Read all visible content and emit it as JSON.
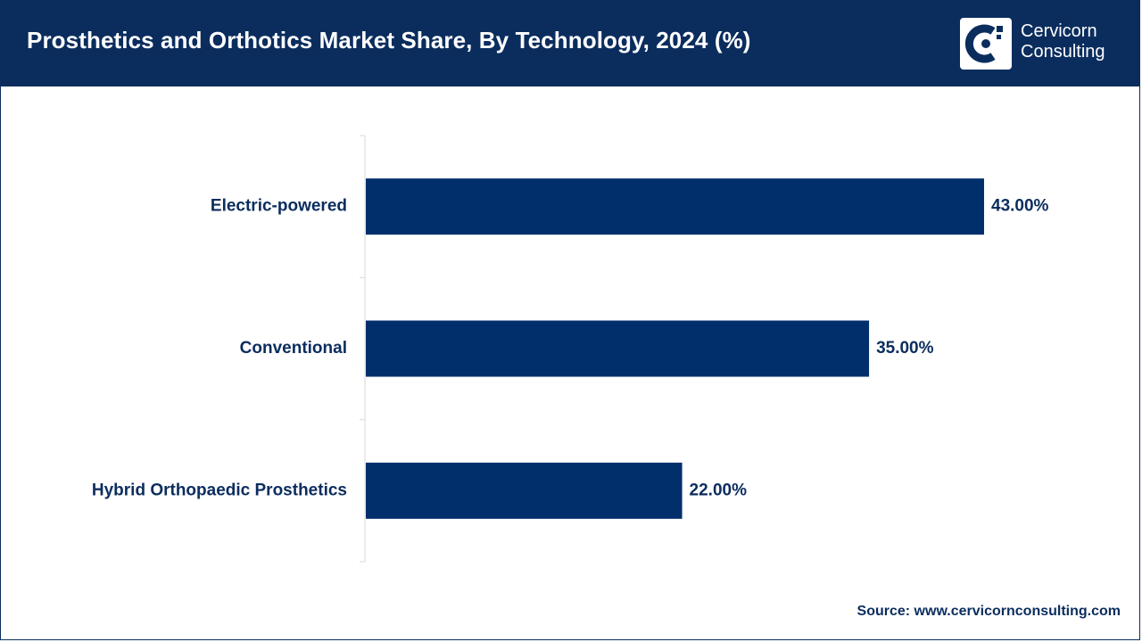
{
  "header": {
    "title": "Prosthetics and Orthotics Market Share, By Technology, 2024 (%)",
    "logo_line1": "Cervicorn",
    "logo_line2": "Consulting"
  },
  "footer": {
    "source": "Source: www.cervicornconsulting.com"
  },
  "colors": {
    "brand": "#0b2d5e",
    "bar": "#002f6c",
    "axis": "#d9d9d9"
  },
  "chart_data": {
    "type": "bar",
    "orientation": "horizontal",
    "title": "Prosthetics and Orthotics Market Share, By Technology, 2024 (%)",
    "categories": [
      "Electric-powered",
      "Conventional",
      "Hybrid Orthopaedic Prosthetics"
    ],
    "values": [
      43.0,
      35.0,
      22.0
    ],
    "value_labels": [
      "43.00%",
      "35.00%",
      "22.00%"
    ],
    "xlim": [
      0,
      50
    ],
    "grid": false,
    "legend": "none"
  }
}
